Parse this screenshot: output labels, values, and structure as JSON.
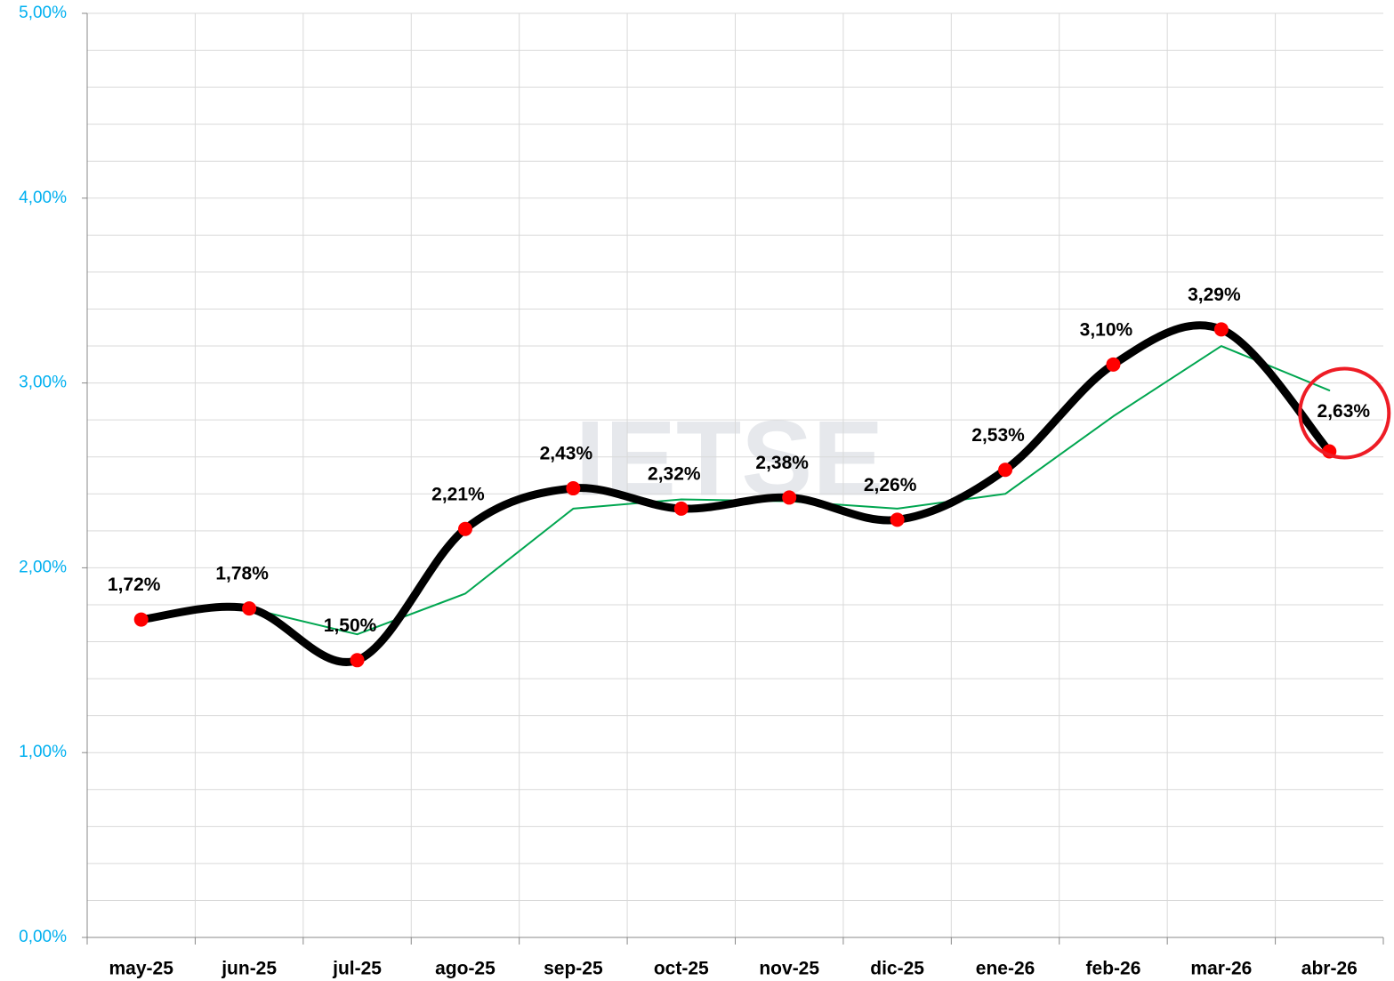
{
  "chart_data": {
    "type": "line",
    "categories": [
      "may-25",
      "jun-25",
      "jul-25",
      "ago-25",
      "sep-25",
      "oct-25",
      "nov-25",
      "dic-25",
      "ene-26",
      "feb-26",
      "mar-26",
      "abr-26"
    ],
    "series": [
      {
        "color": "#000000",
        "marker_color": "#ff0000",
        "smooth": true,
        "values": [
          1.72,
          1.78,
          1.5,
          2.21,
          2.43,
          2.32,
          2.38,
          2.26,
          2.53,
          3.1,
          3.29,
          2.63
        ],
        "value_labels": [
          "1,72%",
          "1,78%",
          "1,50%",
          "2,21%",
          "2,43%",
          "2,32%",
          "2,38%",
          "2,26%",
          "2,53%",
          "3,10%",
          "3,29%",
          "2,63%"
        ]
      },
      {
        "color": "#00a650",
        "smooth": false,
        "values": [
          null,
          1.78,
          1.64,
          1.86,
          2.32,
          2.37,
          2.36,
          2.32,
          2.4,
          2.82,
          3.2,
          2.96
        ]
      }
    ],
    "ylim": [
      0,
      5
    ],
    "yticks": [
      {
        "value": 0,
        "label": "0,00%"
      },
      {
        "value": 1,
        "label": "1,00%"
      },
      {
        "value": 2,
        "label": "2,00%"
      },
      {
        "value": 3,
        "label": "3,00%"
      },
      {
        "value": 4,
        "label": "4,00%"
      },
      {
        "value": 5,
        "label": "5,00%"
      }
    ],
    "yminor_ticks": [
      0.2,
      0.4,
      0.6,
      0.8,
      1.2,
      1.4,
      1.6,
      1.8,
      2.2,
      2.4,
      2.6,
      2.8,
      3.2,
      3.4,
      3.6,
      3.8,
      4.2,
      4.4,
      4.6,
      4.8
    ],
    "grid": true,
    "watermark": "IETSE"
  }
}
